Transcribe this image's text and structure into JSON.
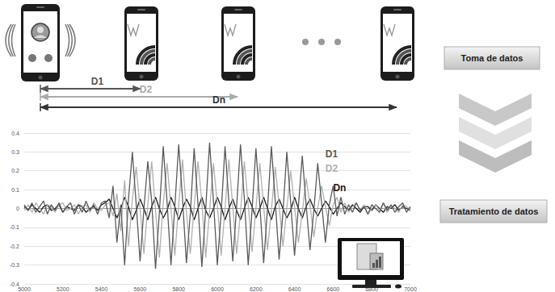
{
  "diagram": {
    "distances": [
      "D1",
      "D2",
      "Dn"
    ],
    "steps": [
      "Toma de datos",
      "Tratamiento de datos"
    ]
  },
  "chart_data": {
    "type": "line",
    "x": [
      5000,
      5020,
      5040,
      5060,
      5080,
      5100,
      5120,
      5140,
      5160,
      5180,
      5200,
      5220,
      5240,
      5260,
      5280,
      5300,
      5320,
      5340,
      5360,
      5380,
      5400,
      5420,
      5440,
      5460,
      5480,
      5500,
      5520,
      5540,
      5560,
      5580,
      5600,
      5620,
      5640,
      5660,
      5680,
      5700,
      5720,
      5740,
      5760,
      5780,
      5800,
      5820,
      5840,
      5860,
      5880,
      5900,
      5920,
      5940,
      5960,
      5980,
      6000,
      6020,
      6040,
      6060,
      6080,
      6100,
      6120,
      6140,
      6160,
      6180,
      6200,
      6220,
      6240,
      6260,
      6280,
      6300,
      6320,
      6340,
      6360,
      6380,
      6400,
      6420,
      6440,
      6460,
      6480,
      6500,
      6520,
      6540,
      6560,
      6580,
      6600,
      6620,
      6640,
      6660,
      6680,
      6700,
      6720,
      6740,
      6760,
      6780,
      6800,
      6820,
      6840,
      6860,
      6880,
      6900,
      6920,
      6940,
      6960,
      6980,
      7000
    ],
    "series": [
      {
        "name": "D1",
        "color": "#5a5a5a",
        "values": [
          0.02,
          -0.01,
          0.03,
          -0.02,
          0.01,
          0.04,
          -0.03,
          0.02,
          -0.01,
          0.03,
          -0.02,
          0.01,
          0.03,
          -0.03,
          0.02,
          -0.02,
          0.04,
          -0.01,
          0.02,
          -0.03,
          0.03,
          0.04,
          -0.05,
          0.12,
          -0.18,
          0.02,
          -0.3,
          0.05,
          0.3,
          0.02,
          -0.28,
          0.0,
          0.25,
          0.04,
          -0.32,
          -0.02,
          0.33,
          0.03,
          -0.3,
          0.01,
          0.34,
          0.05,
          -0.29,
          -0.03,
          0.32,
          0.02,
          -0.31,
          0.0,
          0.35,
          0.04,
          -0.3,
          -0.02,
          0.33,
          0.03,
          -0.28,
          0.01,
          0.34,
          0.05,
          -0.3,
          -0.01,
          0.32,
          0.02,
          -0.29,
          0.0,
          0.33,
          0.04,
          -0.27,
          -0.02,
          0.3,
          0.03,
          -0.25,
          0.01,
          0.28,
          0.02,
          -0.22,
          -0.01,
          0.24,
          0.03,
          -0.18,
          0.02,
          0.12,
          -0.04,
          0.06,
          -0.03,
          0.02,
          -0.02,
          0.03,
          -0.01,
          0.01,
          -0.03,
          0.02,
          0.0,
          -0.02,
          0.03,
          -0.01,
          0.02,
          -0.02,
          0.01,
          0.03,
          -0.02,
          0.01
        ]
      },
      {
        "name": "D2",
        "color": "#b0b0b0",
        "values": [
          -0.01,
          0.02,
          -0.02,
          0.03,
          0.0,
          -0.03,
          0.02,
          0.01,
          -0.02,
          0.02,
          0.03,
          -0.01,
          0.0,
          0.02,
          -0.03,
          0.01,
          0.02,
          -0.02,
          0.03,
          0.0,
          -0.01,
          0.02,
          0.03,
          -0.04,
          0.08,
          -0.12,
          0.15,
          -0.2,
          0.05,
          0.22,
          0.0,
          -0.24,
          0.02,
          0.25,
          -0.01,
          -0.26,
          0.03,
          0.24,
          0.0,
          -0.25,
          0.02,
          0.26,
          -0.02,
          -0.24,
          0.01,
          0.25,
          0.03,
          -0.26,
          -0.01,
          0.24,
          0.02,
          -0.25,
          0.0,
          0.26,
          0.01,
          -0.24,
          -0.02,
          0.25,
          0.02,
          -0.23,
          0.0,
          0.24,
          0.01,
          -0.22,
          -0.01,
          0.22,
          0.02,
          -0.2,
          0.0,
          0.2,
          0.01,
          -0.18,
          -0.02,
          0.16,
          0.02,
          -0.15,
          0.0,
          0.12,
          0.01,
          -0.09,
          0.02,
          0.06,
          -0.02,
          0.03,
          -0.02,
          0.01,
          0.03,
          -0.01,
          0.02,
          -0.03,
          0.0,
          0.02,
          -0.01,
          0.03,
          -0.02,
          0.01,
          0.0,
          -0.02,
          0.02,
          0.01,
          -0.01
        ]
      },
      {
        "name": "Dn",
        "color": "#1a1a1a",
        "values": [
          0.01,
          -0.01,
          0.02,
          0.0,
          -0.02,
          0.01,
          0.02,
          -0.01,
          0.0,
          0.02,
          -0.02,
          0.01,
          0.0,
          -0.01,
          0.02,
          0.01,
          -0.02,
          0.0,
          0.01,
          -0.01,
          0.02,
          0.03,
          0.05,
          0.0,
          -0.05,
          0.0,
          0.06,
          0.01,
          -0.06,
          -0.01,
          0.05,
          0.0,
          -0.06,
          0.01,
          0.06,
          0.0,
          -0.05,
          -0.01,
          0.06,
          0.01,
          -0.06,
          0.0,
          0.05,
          0.01,
          -0.06,
          0.0,
          0.06,
          -0.01,
          -0.05,
          0.0,
          0.06,
          0.01,
          -0.06,
          0.0,
          0.05,
          -0.01,
          -0.06,
          0.0,
          0.06,
          0.01,
          -0.05,
          0.0,
          0.06,
          0.0,
          -0.06,
          0.01,
          0.05,
          0.0,
          -0.05,
          -0.01,
          0.06,
          0.0,
          -0.05,
          0.01,
          0.05,
          0.0,
          -0.04,
          0.0,
          0.04,
          0.01,
          -0.03,
          0.0,
          0.03,
          0.01,
          -0.01,
          0.02,
          0.0,
          -0.02,
          0.01,
          0.01,
          -0.01,
          0.02,
          0.0,
          -0.02,
          0.01,
          0.0,
          0.02,
          -0.01,
          0.01,
          0.0,
          -0.01
        ]
      }
    ],
    "annotations": [
      {
        "text": "D1",
        "x": 6560,
        "y": 0.29
      },
      {
        "text": "D2",
        "x": 6560,
        "y": 0.21
      },
      {
        "text": "Dn",
        "x": 6600,
        "y": 0.11
      }
    ],
    "xlim": [
      5000,
      7000
    ],
    "xticks": [
      5000,
      5200,
      5400,
      5600,
      5800,
      6000,
      6200,
      6400,
      6600,
      6800,
      7000
    ],
    "ylim": [
      -0.4,
      0.4
    ],
    "yticks": [
      -0.4,
      -0.3,
      -0.2,
      -0.1,
      0,
      0.1,
      0.2,
      0.3,
      0.4
    ],
    "grid": true
  }
}
